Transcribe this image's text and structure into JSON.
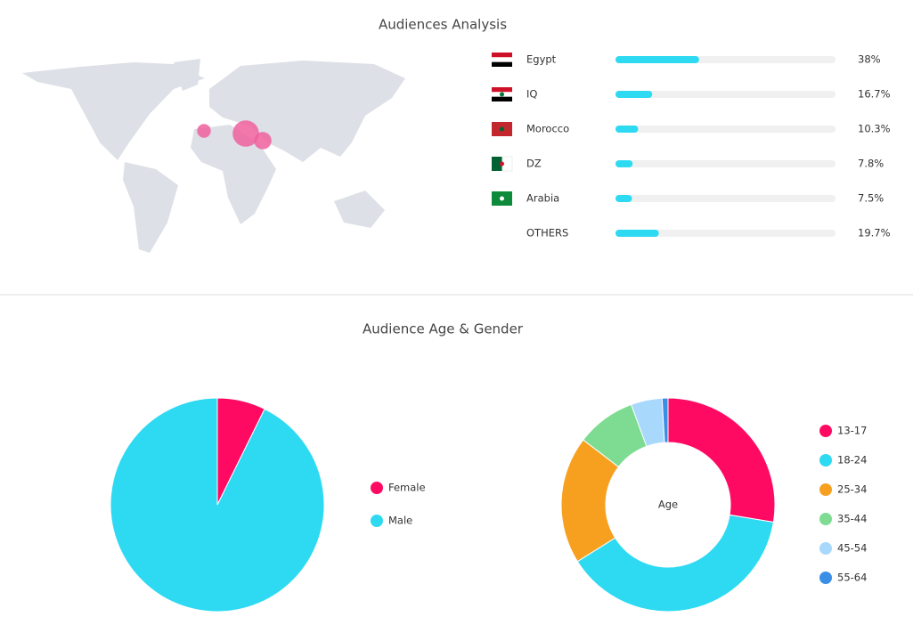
{
  "audiences": {
    "title": "Audiences Analysis",
    "countries": [
      "Egypt",
      "IQ",
      "Morocco",
      "DZ",
      "Arabia",
      "OTHERS"
    ],
    "values": [
      38,
      16.7,
      10.3,
      7.8,
      7.5,
      19.7
    ],
    "value_labels": [
      "38%",
      "16.7%",
      "10.3%",
      "7.8%",
      "7.5%",
      "19.7%"
    ],
    "bar_color": "#2ddaf2"
  },
  "age_gender": {
    "title": "Audience Age & Gender"
  },
  "chart_data": [
    {
      "type": "pie",
      "categories": [
        "Female",
        "Male"
      ],
      "values": [
        7.3,
        92.7
      ],
      "colors": [
        "#ff0a62",
        "#2ddaf2"
      ]
    },
    {
      "type": "donut",
      "center_label": "Age",
      "categories": [
        "13-17",
        "18-24",
        "25-34",
        "35-44",
        "45-54",
        "55-64"
      ],
      "values": [
        27.6,
        38.5,
        19.3,
        9.0,
        4.7,
        0.9
      ],
      "colors": [
        "#ff0a62",
        "#2ddaf2",
        "#f7a020",
        "#7ddc92",
        "#a8d8fb",
        "#3a8ee6"
      ]
    }
  ]
}
